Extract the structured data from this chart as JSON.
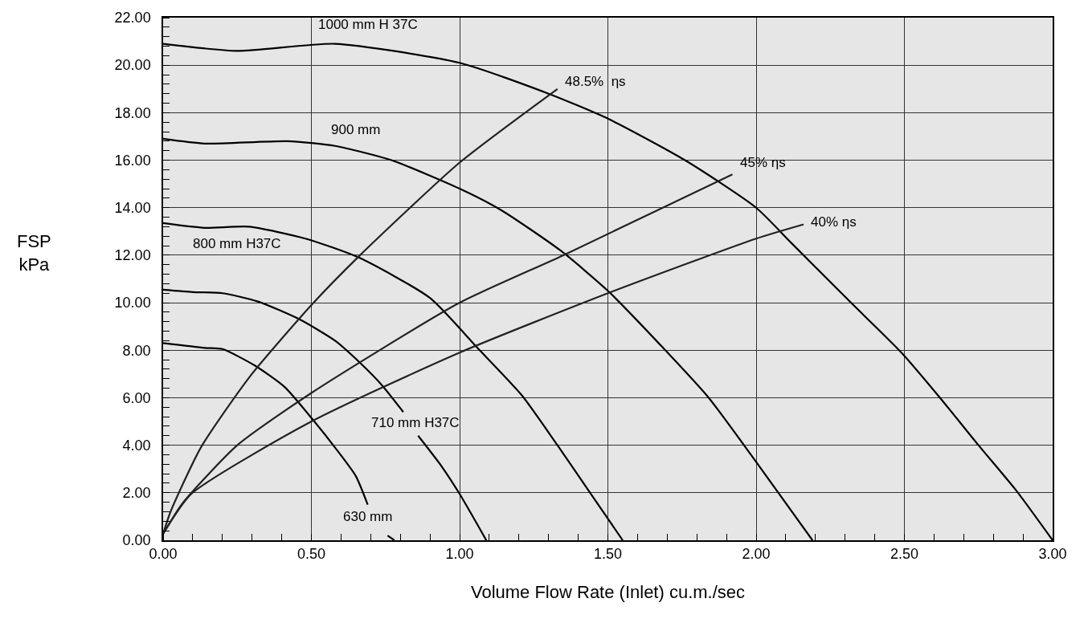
{
  "chart_data": {
    "type": "line",
    "xlabel": "Volume Flow Rate (Inlet) cu.m./sec",
    "ylabel": "FSP kPa",
    "xlim": [
      0,
      3.0
    ],
    "ylim": [
      0,
      22
    ],
    "xticks": [
      {
        "value": 0,
        "label": "0.00"
      },
      {
        "value": 0.5,
        "label": "0.50"
      },
      {
        "value": 1.0,
        "label": "1.00"
      },
      {
        "value": 1.5,
        "label": "1.50"
      },
      {
        "value": 2.0,
        "label": "2.00"
      },
      {
        "value": 2.5,
        "label": "2.50"
      },
      {
        "value": 3.0,
        "label": "3.00"
      }
    ],
    "yticks": [
      {
        "value": 0,
        "label": "0.00"
      },
      {
        "value": 2,
        "label": "2.00"
      },
      {
        "value": 4,
        "label": "4.00"
      },
      {
        "value": 6,
        "label": "6.00"
      },
      {
        "value": 8,
        "label": "8.00"
      },
      {
        "value": 10,
        "label": "10.00"
      },
      {
        "value": 12,
        "label": "12.00"
      },
      {
        "value": 14,
        "label": "14.00"
      },
      {
        "value": 16,
        "label": "16.00"
      },
      {
        "value": 18,
        "label": "18.00"
      },
      {
        "value": 20,
        "label": "20.00"
      },
      {
        "value": 22,
        "label": "22.00"
      }
    ],
    "grid": true,
    "legend": false,
    "marker": "none",
    "line_style": "solid",
    "series": [
      {
        "name": "1000 mm H 37C",
        "color": "#000000",
        "x": [
          0,
          0.25,
          0.58,
          1.0,
          1.3,
          1.5,
          1.76,
          2.0,
          2.12,
          2.32,
          2.49,
          2.62,
          2.75,
          2.88,
          3.0
        ],
        "values": [
          20.9,
          20.6,
          20.9,
          20.1,
          18.8,
          17.75,
          16.0,
          14.0,
          12.5,
          10.0,
          7.9,
          6.0,
          4.0,
          2.05,
          0
        ]
      },
      {
        "name": "900 mm",
        "color": "#000000",
        "x": [
          0,
          0.14,
          0.42,
          0.58,
          0.77,
          1.0,
          1.14,
          1.34,
          1.5,
          1.69,
          1.84,
          2.0,
          2.19
        ],
        "values": [
          16.9,
          16.7,
          16.8,
          16.6,
          16.0,
          14.8,
          13.9,
          12.2,
          10.5,
          8.05,
          6.0,
          3.3,
          0
        ]
      },
      {
        "name": "800 mm H37C",
        "color": "#000000",
        "x": [
          0,
          0.14,
          0.29,
          0.48,
          0.66,
          0.9,
          1.06,
          1.21,
          1.33,
          1.44,
          1.55
        ],
        "values": [
          13.35,
          13.15,
          13.2,
          12.7,
          11.9,
          10.2,
          8.1,
          6.1,
          4.0,
          2.0,
          0
        ]
      },
      {
        "name": "710 mm H37C",
        "color": "#000000",
        "x": [
          0,
          0.1,
          0.2,
          0.32,
          0.46,
          0.58,
          0.67,
          0.74,
          0.81,
          0.835,
          0.86,
          0.94,
          1.0,
          1.09
        ],
        "values": [
          10.55,
          10.45,
          10.4,
          10.05,
          9.3,
          8.4,
          7.4,
          6.5,
          5.4,
          null,
          4.4,
          3.1,
          1.95,
          0
        ]
      },
      {
        "name": "630 mm",
        "color": "#000000",
        "x": [
          0,
          0.14,
          0.2,
          0.31,
          0.41,
          0.51,
          0.58,
          0.65,
          0.69,
          0.72,
          0.757,
          0.78
        ],
        "values": [
          8.3,
          8.1,
          8.05,
          7.35,
          6.45,
          5.0,
          3.9,
          2.7,
          1.5,
          null,
          0.2,
          0
        ]
      },
      {
        "name": "48.5%  ηs",
        "color": "#222222",
        "x": [
          0,
          0.025,
          0.127,
          0.29,
          0.5,
          0.66,
          1.0,
          1.33
        ],
        "values": [
          0.27,
          1.2,
          3.9,
          6.85,
          9.9,
          11.95,
          15.9,
          19.0
        ]
      },
      {
        "name": "45% ηs",
        "color": "#222222",
        "x": [
          0,
          0.065,
          0.25,
          0.5,
          1.0,
          1.35,
          1.92
        ],
        "values": [
          0.27,
          1.55,
          4.0,
          6.2,
          10.0,
          12.0,
          15.4
        ]
      },
      {
        "name": "40% ηs",
        "color": "#222222",
        "x": [
          0,
          0.095,
          0.5,
          1.0,
          1.5,
          2.0,
          2.16
        ],
        "values": [
          0.27,
          1.95,
          5.0,
          7.9,
          10.4,
          12.7,
          13.3
        ]
      }
    ]
  }
}
